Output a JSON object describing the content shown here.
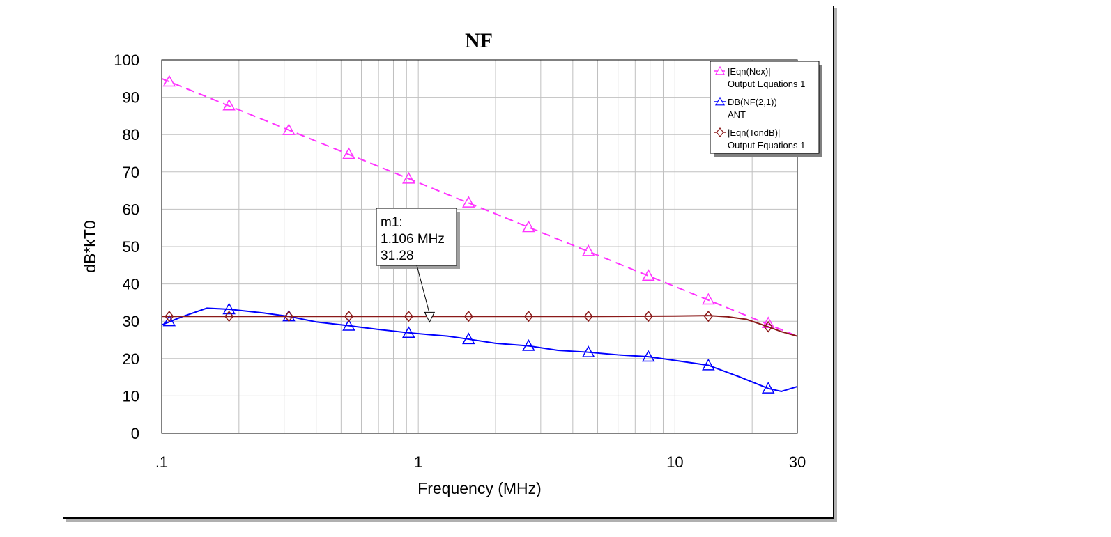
{
  "chart_data": {
    "type": "line",
    "title": "NF",
    "xlabel": "Frequency (MHz)",
    "ylabel": "dB*kT0",
    "x_scale": "log",
    "xlim": [
      0.1,
      30
    ],
    "ylim": [
      0,
      100
    ],
    "x_ticks": [
      0.1,
      1,
      10,
      30
    ],
    "x_tick_labels": [
      ".1",
      "1",
      "10",
      "30"
    ],
    "y_ticks": [
      0,
      10,
      20,
      30,
      40,
      50,
      60,
      70,
      80,
      90,
      100
    ],
    "y_tick_labels": [
      "0",
      "10",
      "20",
      "30",
      "40",
      "50",
      "60",
      "70",
      "80",
      "90",
      "100"
    ],
    "grid": true,
    "legend_position": "top-right",
    "series": [
      {
        "name": "|Eqn(Nex)|",
        "source": "Output Equations 1",
        "color": "#ff33ff",
        "dash": true,
        "marker": "triangle",
        "x": [
          0.1,
          30
        ],
        "y": [
          95,
          26
        ],
        "marker_x": [
          0.107,
          0.183,
          0.313,
          0.536,
          0.917,
          1.57,
          2.69,
          4.6,
          7.88,
          13.5,
          23.1
        ],
        "marker_y": [
          94.2,
          87.8,
          81.2,
          74.8,
          68.2,
          61.8,
          55.2,
          48.8,
          42.2,
          35.8,
          29.5
        ]
      },
      {
        "name": "DB(NF(2,1))",
        "source": "ANT",
        "color": "#0000ff",
        "dash": false,
        "marker": "triangle",
        "x": [
          0.1,
          0.12,
          0.15,
          0.183,
          0.25,
          0.313,
          0.4,
          0.536,
          0.7,
          0.917,
          1.106,
          1.3,
          1.57,
          2,
          2.69,
          3.5,
          4.6,
          6,
          7.88,
          10,
          13.5,
          18,
          23.1,
          26,
          30
        ],
        "y": [
          29,
          31.2,
          33.5,
          33.2,
          32.2,
          31.3,
          29.8,
          28.8,
          27.8,
          26.9,
          26.4,
          26.0,
          25.2,
          24.1,
          23.4,
          22.2,
          21.7,
          21,
          20.5,
          19.5,
          18.2,
          15,
          12,
          11.2,
          12.5
        ],
        "marker_x": [
          0.107,
          0.183,
          0.313,
          0.536,
          0.917,
          1.57,
          2.69,
          4.6,
          7.88,
          13.5,
          23.1
        ],
        "marker_y": [
          30,
          33.2,
          31.3,
          28.8,
          26.9,
          25.2,
          23.4,
          21.7,
          20.5,
          18.2,
          12
        ]
      },
      {
        "name": "|Eqn(TondB)|",
        "source": "Output Equations 1",
        "color": "#8b1a1a",
        "dash": false,
        "marker": "diamond",
        "x": [
          0.1,
          1,
          5,
          10,
          13.5,
          16,
          19,
          23.1,
          26,
          30
        ],
        "y": [
          31.3,
          31.3,
          31.3,
          31.4,
          31.5,
          31.2,
          30.5,
          28.5,
          27.2,
          26
        ],
        "marker_x": [
          0.107,
          0.183,
          0.313,
          0.536,
          0.917,
          1.57,
          2.69,
          4.6,
          7.88,
          13.5,
          23.1
        ],
        "marker_y": [
          31.3,
          31.3,
          31.3,
          31.3,
          31.3,
          31.3,
          31.3,
          31.3,
          31.3,
          31.3,
          28.5
        ]
      }
    ],
    "annotations": [
      {
        "label": "m1:",
        "x_text": "1.106 MHz",
        "y_text": "31.28",
        "x": 1.106,
        "y": 31.28
      }
    ]
  }
}
